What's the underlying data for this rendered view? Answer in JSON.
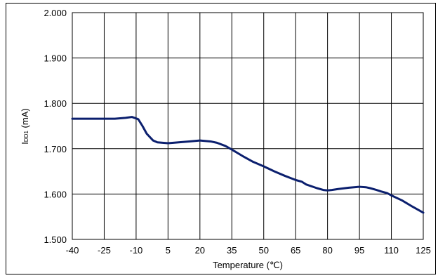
{
  "chart_data": {
    "type": "line",
    "title": "",
    "xlabel": "Temperature (℃)",
    "ylabel_main": "I",
    "ylabel_sub": "DD1",
    "ylabel_unit": " (mA)",
    "xlim": [
      -40,
      125
    ],
    "ylim": [
      1.5,
      2.0
    ],
    "xticks": [
      -40,
      -25,
      -10,
      5,
      20,
      35,
      50,
      65,
      80,
      95,
      110,
      125
    ],
    "yticks": [
      "1.500",
      "1.600",
      "1.700",
      "1.800",
      "1.900",
      "2.000"
    ],
    "grid": true,
    "line_color": "#0b1f6e",
    "series": [
      {
        "x": [
          -40,
          -30,
          -20,
          -15,
          -12,
          -9,
          -7,
          -5,
          -2,
          0,
          5,
          10,
          15,
          20,
          25,
          28,
          32,
          35,
          40,
          45,
          50,
          55,
          60,
          65,
          68,
          70,
          75,
          78,
          80,
          82,
          85,
          90,
          95,
          98,
          100,
          103,
          105,
          108,
          110,
          115,
          120,
          125
        ],
        "y": [
          1.766,
          1.766,
          1.766,
          1.768,
          1.77,
          1.765,
          1.75,
          1.733,
          1.718,
          1.714,
          1.712,
          1.714,
          1.716,
          1.718,
          1.716,
          1.713,
          1.706,
          1.698,
          1.684,
          1.671,
          1.661,
          1.65,
          1.64,
          1.631,
          1.627,
          1.621,
          1.613,
          1.609,
          1.608,
          1.609,
          1.611,
          1.614,
          1.616,
          1.615,
          1.613,
          1.609,
          1.606,
          1.602,
          1.597,
          1.586,
          1.572,
          1.559
        ]
      }
    ]
  }
}
